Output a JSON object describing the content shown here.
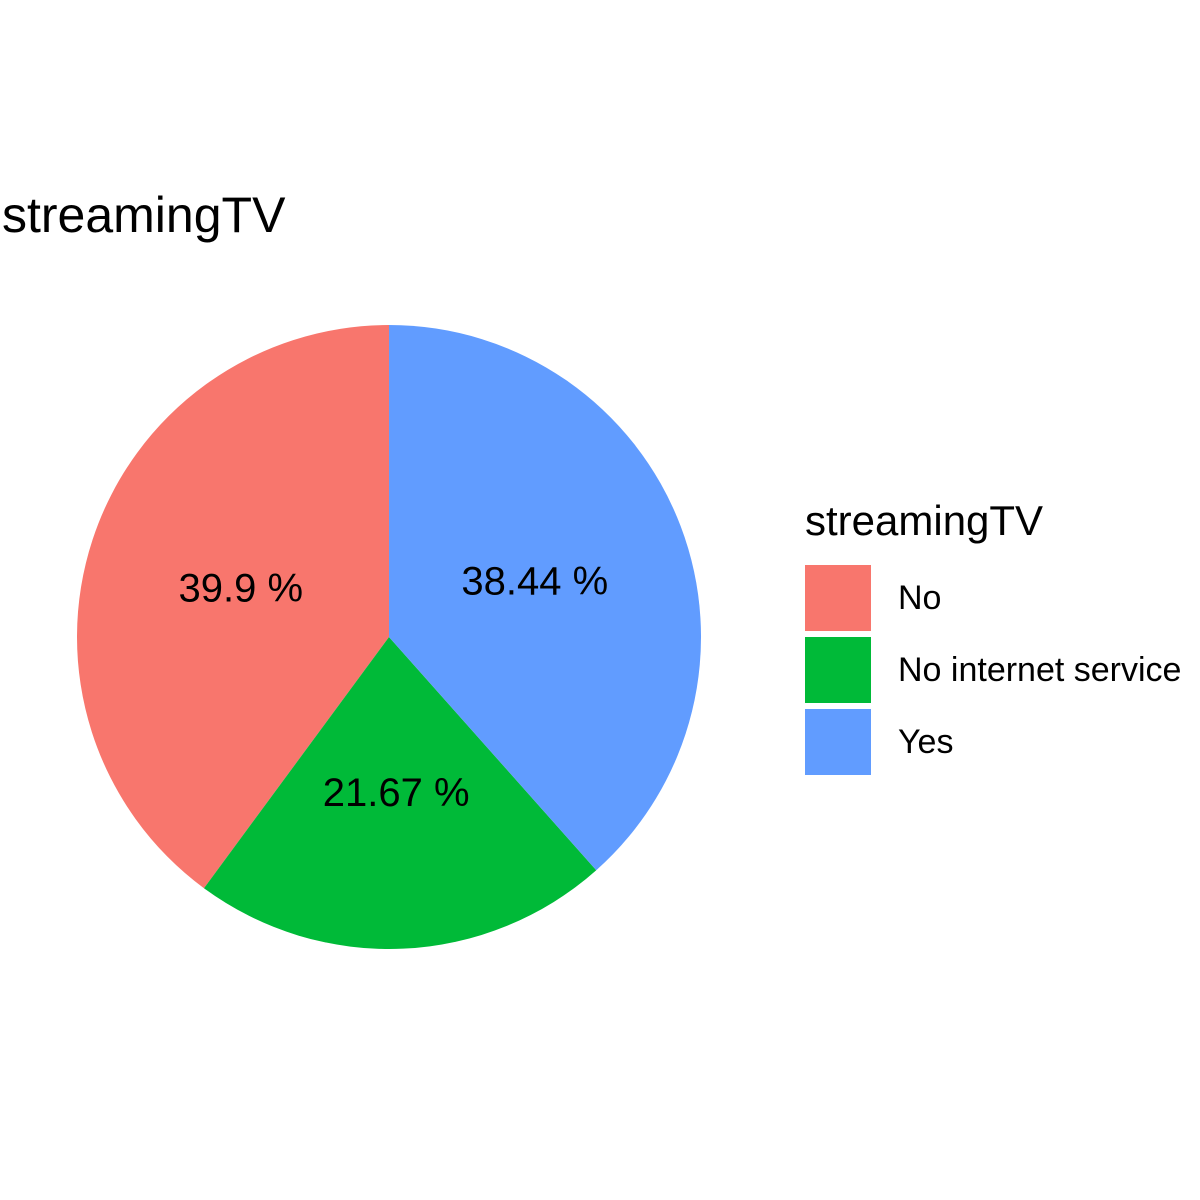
{
  "chart_data": {
    "type": "pie",
    "title": "streamingTV",
    "legend_title": "streamingTV",
    "legend_position": "right",
    "categories": [
      "No",
      "No internet service",
      "Yes"
    ],
    "values": [
      39.9,
      21.67,
      38.44
    ],
    "labels": [
      "39.9 %",
      "21.67 %",
      "38.44 %"
    ],
    "colors": [
      "#F8766D",
      "#00BA38",
      "#619CFF"
    ],
    "start": "top",
    "direction": "counterclockwise"
  }
}
